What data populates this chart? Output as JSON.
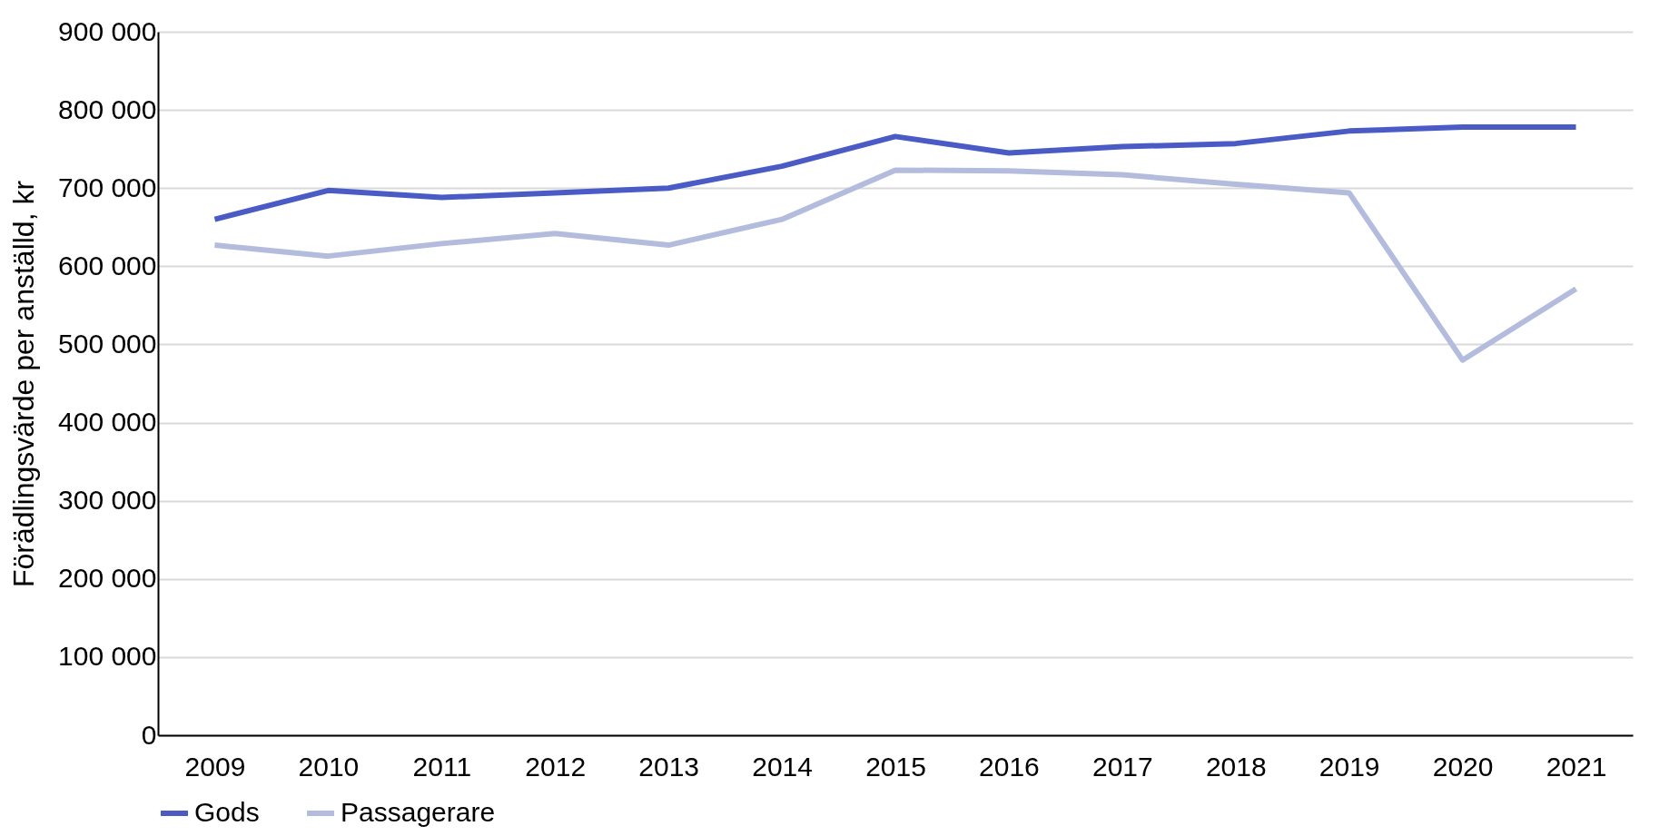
{
  "chart_data": {
    "type": "line",
    "ylabel": "Förädlingsvärde per anställd, kr",
    "categories": [
      "2009",
      "2010",
      "2011",
      "2012",
      "2013",
      "2014",
      "2015",
      "2016",
      "2017",
      "2018",
      "2019",
      "2020",
      "2021"
    ],
    "series": [
      {
        "name": "Gods",
        "color": "#4a5bc6",
        "values": [
          660000,
          697000,
          688000,
          694000,
          700000,
          728000,
          766000,
          745000,
          753000,
          757000,
          773000,
          778000,
          778000
        ]
      },
      {
        "name": "Passagerare",
        "color": "#b4bcde",
        "values": [
          627000,
          613000,
          629000,
          642000,
          627000,
          660000,
          723000,
          722000,
          717000,
          705000,
          694000,
          480000,
          571000
        ]
      }
    ],
    "ylim": [
      0,
      900000
    ],
    "yticks": [
      0,
      {
        "value": 100000,
        "label": "100 000"
      },
      {
        "value": 200000,
        "label": "200 000"
      },
      {
        "value": 300000,
        "label": "300 000"
      },
      {
        "value": 400000,
        "label": "400 000"
      },
      {
        "value": 500000,
        "label": "500 000"
      },
      {
        "value": 600000,
        "label": "600 000"
      },
      {
        "value": 700000,
        "label": "700 000"
      },
      {
        "value": 800000,
        "label": "800 000"
      },
      {
        "value": 900000,
        "label": "900 000"
      }
    ],
    "grid": "y",
    "legend": "bottom",
    "marker": "none",
    "line_style": "solid"
  }
}
